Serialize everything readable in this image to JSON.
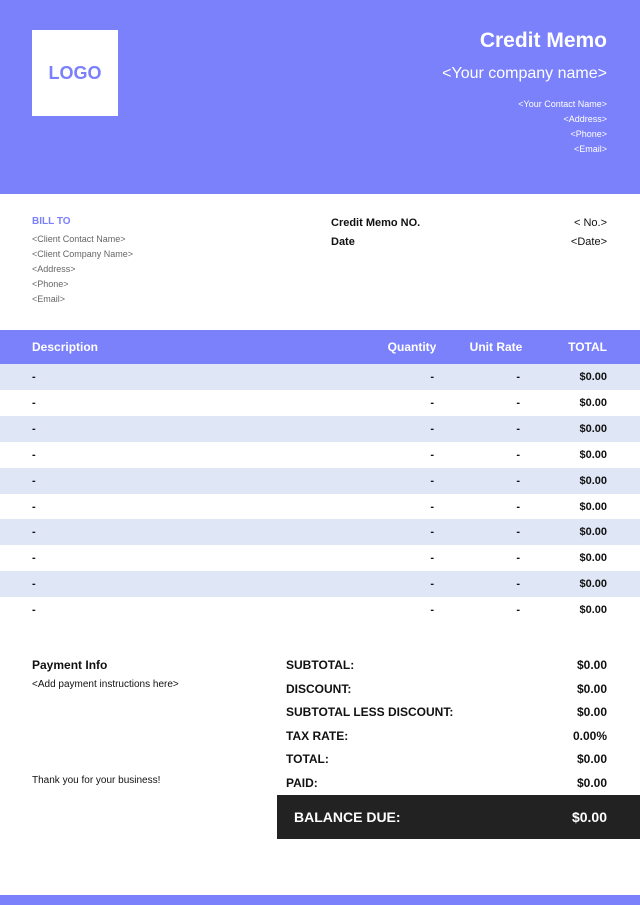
{
  "header": {
    "logo": "LOGO",
    "title": "Credit Memo",
    "company_name": "<Your company name>",
    "contact": [
      "<Your Contact Name>",
      "<Address>",
      "<Phone>",
      "<Email>"
    ]
  },
  "bill_to": {
    "label": "BILL TO",
    "lines": [
      "<Client Contact Name>",
      "<Client Company Name>",
      "<Address>",
      "<Phone>",
      "<Email>"
    ]
  },
  "memo_info": [
    [
      "Credit Memo NO.",
      "< No.>"
    ],
    [
      "Date",
      "<Date>"
    ]
  ],
  "table": {
    "columns": [
      "Description",
      "Quantity",
      "Unit Rate",
      "TOTAL"
    ],
    "rows": [
      [
        "-",
        "-",
        "-",
        "$0.00"
      ],
      [
        "-",
        "-",
        "-",
        "$0.00"
      ],
      [
        "-",
        "-",
        "-",
        "$0.00"
      ],
      [
        "-",
        "-",
        "-",
        "$0.00"
      ],
      [
        "-",
        "-",
        "-",
        "$0.00"
      ],
      [
        "-",
        "-",
        "-",
        "$0.00"
      ],
      [
        "-",
        "-",
        "-",
        "$0.00"
      ],
      [
        "-",
        "-",
        "-",
        "$0.00"
      ],
      [
        "-",
        "-",
        "-",
        "$0.00"
      ],
      [
        "-",
        "-",
        "-",
        "$0.00"
      ]
    ]
  },
  "payment": {
    "title": "Payment Info",
    "instructions": "<Add payment instructions here>",
    "thanks": "Thank you for your business!"
  },
  "summary": [
    [
      "SUBTOTAL:",
      "$0.00"
    ],
    [
      "DISCOUNT:",
      "$0.00"
    ],
    [
      "SUBTOTAL LESS DISCOUNT:",
      "$0.00"
    ],
    [
      "TAX RATE:",
      "0.00%"
    ],
    [
      "TOTAL:",
      "$0.00"
    ],
    [
      "PAID:",
      "$0.00"
    ]
  ],
  "balance_due": {
    "label": "BALANCE DUE:",
    "value": "$0.00"
  }
}
